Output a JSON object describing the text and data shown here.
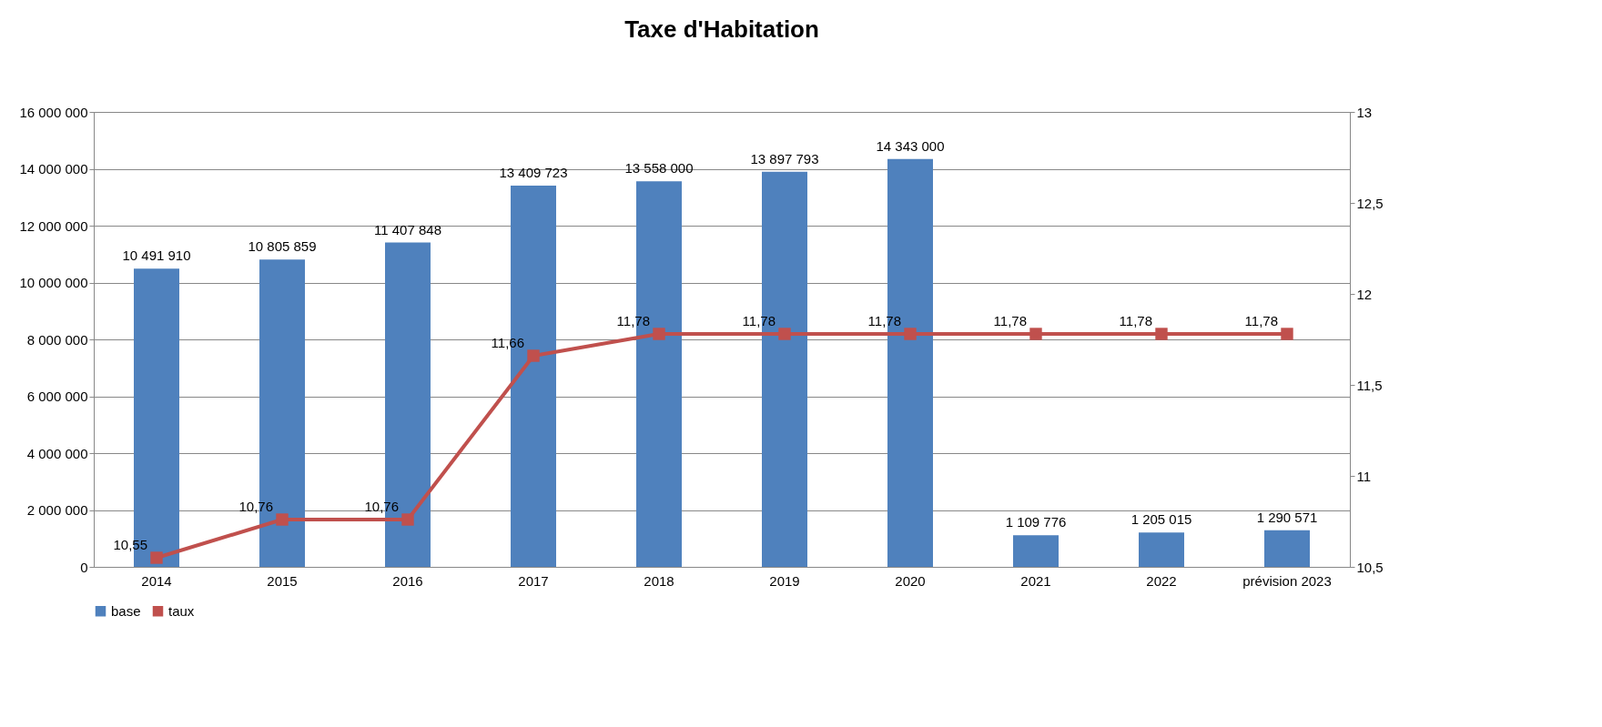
{
  "chart_data": {
    "type": "bar",
    "title": "Taxe d'Habitation",
    "categories": [
      "2014",
      "2015",
      "2016",
      "2017",
      "2018",
      "2019",
      "2020",
      "2021",
      "2022",
      "prévision 2023"
    ],
    "series": [
      {
        "name": "base",
        "color": "#4f81bd",
        "values": [
          10491910,
          10805859,
          11407848,
          13409723,
          13558000,
          13897793,
          14343000,
          1109776,
          1205015,
          1290571
        ]
      },
      {
        "name": "taux",
        "type": "line",
        "axis": "y2",
        "color": "#c0504d",
        "values": [
          10.55,
          10.76,
          10.76,
          11.66,
          11.78,
          11.78,
          11.78,
          11.78,
          11.78,
          11.78
        ],
        "value_labels": [
          "10,55",
          "10,76",
          "10,76",
          "11,66",
          "11,78",
          "11,78",
          "11,78",
          "11,78",
          "11,78",
          "11,78"
        ]
      }
    ],
    "ylim": [
      0,
      16000000
    ],
    "yticks": [
      0,
      2000000,
      4000000,
      6000000,
      8000000,
      10000000,
      12000000,
      14000000,
      16000000
    ],
    "y2lim": [
      10.5,
      13
    ],
    "y2ticks": [
      {
        "value": 10.5,
        "label": "10,5"
      },
      11,
      {
        "value": 11.5,
        "label": "11,5"
      },
      12,
      {
        "value": 12.5,
        "label": "12,5"
      },
      13
    ],
    "grid": "y",
    "legend": "bottom",
    "marker": "square",
    "data_labels": true
  }
}
